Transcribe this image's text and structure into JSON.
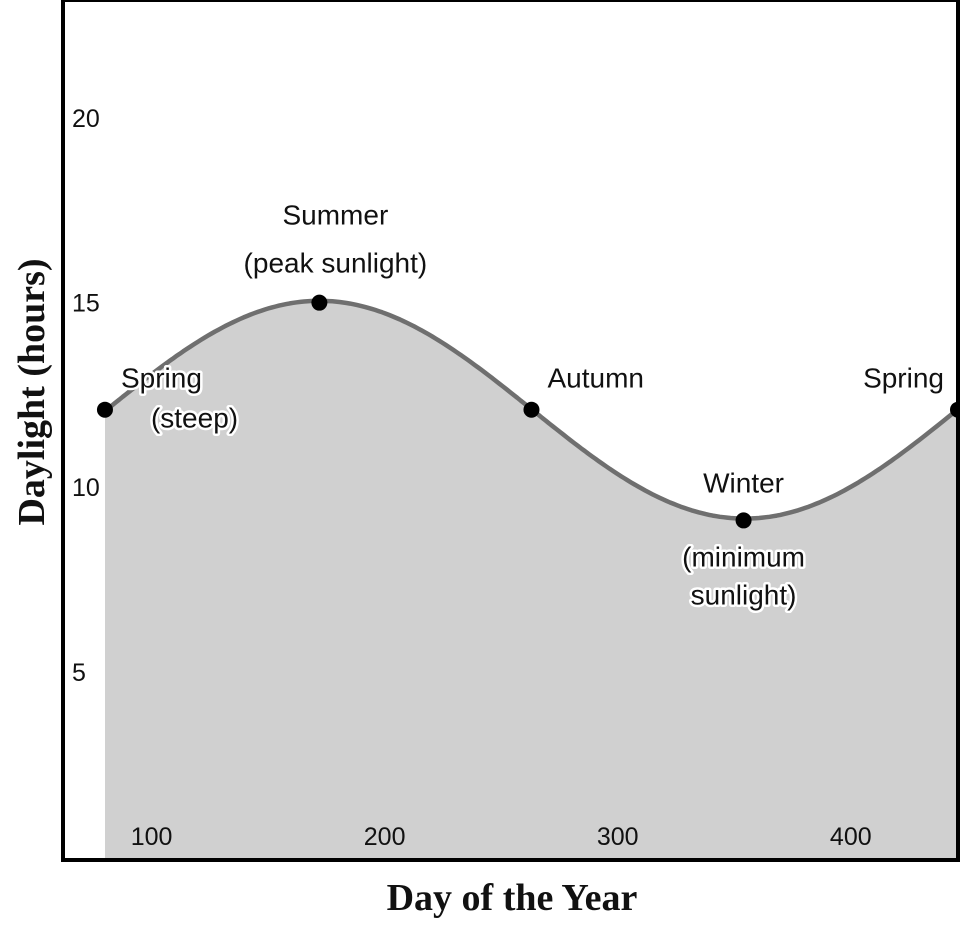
{
  "chart_data": {
    "type": "area",
    "xlabel": "Day of the Year",
    "ylabel": "Daylight (hours)",
    "xlim": [
      62,
      446
    ],
    "ylim": [
      -0.1,
      23.2
    ],
    "xticks": [
      100,
      200,
      300,
      400
    ],
    "yticks": [
      5,
      10,
      15,
      20
    ],
    "grid": false,
    "curve": {
      "mean": 12.1,
      "amplitude": 2.95,
      "peak_day": 172,
      "period_days": 365,
      "x_start": 80,
      "x_end": 446
    },
    "colors": {
      "fill": "#d0d0d0",
      "line": "#6f6f6f",
      "point": "#000000"
    },
    "points": [
      {
        "x": 80,
        "y": 12.1,
        "label": [
          "Spring",
          "(steep)"
        ]
      },
      {
        "x": 172,
        "y": 15.0,
        "label": [
          "Summer",
          "(peak sunlight)"
        ]
      },
      {
        "x": 263,
        "y": 12.1,
        "label": [
          "Autumn"
        ]
      },
      {
        "x": 354,
        "y": 9.1,
        "label": [
          "Winter",
          "(minimum",
          "sunlight)"
        ]
      },
      {
        "x": 446,
        "y": 12.1,
        "label": [
          "Spring"
        ]
      }
    ]
  }
}
